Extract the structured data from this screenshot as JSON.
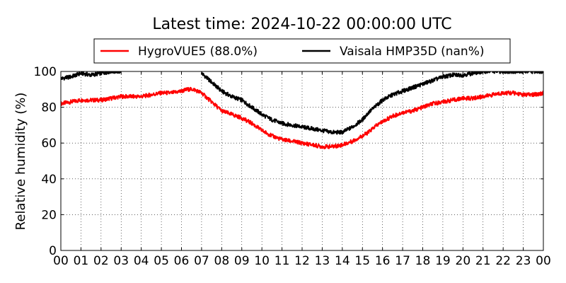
{
  "chart_data": {
    "type": "line",
    "title": "Latest time: 2024-10-22 00:00:00 UTC",
    "xlabel": "",
    "ylabel": "Relative humidity (%)",
    "xlim": [
      0,
      24
    ],
    "ylim": [
      0,
      100
    ],
    "grid": true,
    "legend_position": "top",
    "x_ticks": [
      "00",
      "01",
      "02",
      "03",
      "04",
      "05",
      "06",
      "07",
      "08",
      "09",
      "10",
      "11",
      "12",
      "13",
      "14",
      "15",
      "16",
      "17",
      "18",
      "19",
      "20",
      "21",
      "22",
      "23",
      "00"
    ],
    "y_ticks": [
      "0",
      "20",
      "40",
      "60",
      "80",
      "100"
    ],
    "series": [
      {
        "name": "HygroVUE5 (88.0%)",
        "color": "#ff0000",
        "x": [
          0,
          0.5,
          1,
          1.5,
          2,
          2.5,
          3,
          3.5,
          4,
          4.5,
          5,
          5.5,
          6,
          6.3,
          6.6,
          7,
          7.3,
          7.6,
          8,
          8.5,
          9,
          9.5,
          10,
          10.5,
          11,
          11.5,
          12,
          12.5,
          13,
          13.5,
          14,
          14.5,
          15,
          15.3,
          15.6,
          16,
          16.5,
          17,
          17.5,
          18,
          18.5,
          19,
          19.5,
          20,
          20.5,
          21,
          21.5,
          22,
          22.5,
          23,
          23.5,
          24
        ],
        "values": [
          82,
          83,
          84,
          84,
          84,
          85,
          86,
          86,
          86,
          87,
          88,
          88,
          89,
          90,
          90,
          88,
          85,
          82,
          78,
          76,
          74,
          71,
          67,
          64,
          62,
          61,
          60,
          59,
          58,
          58,
          59,
          61,
          64,
          66,
          69,
          72,
          75,
          77,
          78,
          80,
          82,
          83,
          84,
          85,
          85,
          86,
          87,
          88,
          88,
          87,
          87,
          88
        ]
      },
      {
        "name": "Vaisala HMP35D (nan%)",
        "color": "#000000",
        "x": [
          0,
          0.5,
          1,
          1.5,
          2,
          2.5,
          3,
          6,
          7,
          7.3,
          7.6,
          8,
          8.5,
          9,
          9.5,
          10,
          10.5,
          11,
          11.5,
          12,
          12.5,
          13,
          13.5,
          14,
          14.5,
          15,
          15.3,
          15.6,
          16,
          16.5,
          17,
          17.5,
          18,
          18.5,
          19,
          19.5,
          20,
          20.5,
          21,
          21.5,
          22,
          23,
          24
        ],
        "values": [
          96,
          97,
          99,
          98,
          99,
          100,
          100,
          null,
          99,
          96,
          93,
          89,
          86,
          84,
          80,
          76,
          73,
          71,
          70,
          69,
          68,
          67,
          66,
          66,
          69,
          73,
          77,
          80,
          84,
          87,
          89,
          91,
          93,
          95,
          97,
          98,
          98,
          99,
          100,
          100,
          100,
          100,
          100
        ],
        "note_style": "breaks where data exceeds 100"
      }
    ]
  }
}
